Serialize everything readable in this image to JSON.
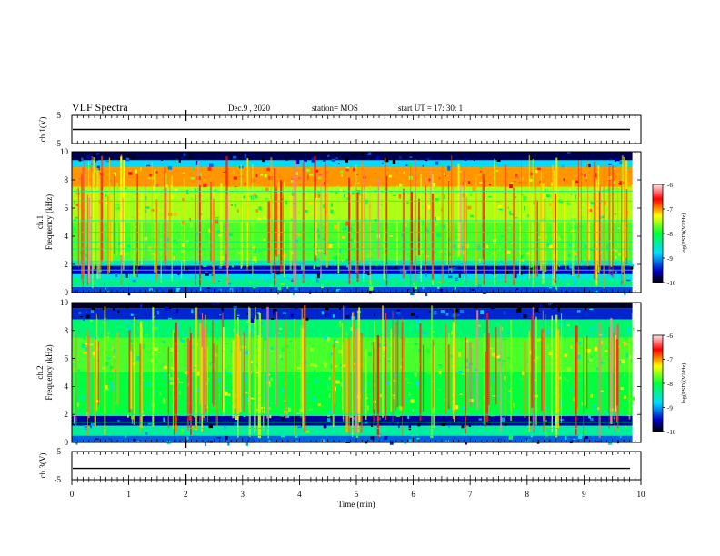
{
  "header": {
    "title": "VLF Spectra",
    "date": "Dec.9 , 2020",
    "station": "station= MOS",
    "start": "start UT = 17: 30: 1"
  },
  "colorbar": {
    "label": "log(PSD)(V²/Hz)",
    "ticks": [
      "-6",
      "-7",
      "-8",
      "-9",
      "-10"
    ],
    "stops": [
      "#ffffff",
      "#ff0000",
      "#ffff00",
      "#00ff00",
      "#00ffff",
      "#0000ff",
      "#000000"
    ]
  },
  "chart_data": [
    {
      "type": "line",
      "name": "ch1-waveform",
      "ylabel": "ch.1(V)",
      "ylim": [
        -5,
        5
      ],
      "yticks": [
        "5",
        "-5"
      ],
      "xlim": [
        0,
        10
      ],
      "series": [
        {
          "values_approx_constant": 0.0
        }
      ]
    },
    {
      "type": "heatmap",
      "name": "ch1-spectrogram",
      "ylabel": "ch.1\nFrequency (kHz)",
      "ylim": [
        0,
        10
      ],
      "yticks": [
        "0",
        "2",
        "4",
        "6",
        "8",
        "10"
      ],
      "xlim": [
        0,
        10
      ],
      "data_end_min": 9.85,
      "zlim": [
        -10,
        -6
      ],
      "zlabel": "log(PSD)(V²/Hz)",
      "bands": [
        {
          "from": 0,
          "to": 0.4,
          "level": 0.18
        },
        {
          "from": 0.4,
          "to": 0.9,
          "level": 0.42
        },
        {
          "from": 0.9,
          "to": 1.3,
          "level": 0.33
        },
        {
          "from": 1.3,
          "to": 1.9,
          "level": 0.12
        },
        {
          "from": 1.9,
          "to": 2.3,
          "level": 0.38
        },
        {
          "from": 2.3,
          "to": 5.0,
          "level": 0.55
        },
        {
          "from": 5.0,
          "to": 7.5,
          "level": 0.62
        },
        {
          "from": 7.5,
          "to": 8.9,
          "level": 0.75
        },
        {
          "from": 8.9,
          "to": 9.4,
          "level": 0.3
        },
        {
          "from": 9.4,
          "to": 10,
          "level": 0.05
        }
      ],
      "lines_khz": [
        0.5,
        0.95,
        1.6,
        1.95,
        2.2,
        3.1,
        3.6,
        4.3,
        5.1,
        6.5,
        7.2
      ]
    },
    {
      "type": "heatmap",
      "name": "ch2-spectrogram",
      "ylabel": "ch.2\nFrequency (kHz)",
      "ylim": [
        0,
        10
      ],
      "yticks": [
        "0",
        "2",
        "4",
        "6",
        "8",
        "10"
      ],
      "xlim": [
        0,
        10
      ],
      "data_end_min": 9.85,
      "zlim": [
        -10,
        -6
      ],
      "zlabel": "log(PSD)(V²/Hz)",
      "bands": [
        {
          "from": 0,
          "to": 0.5,
          "level": 0.2
        },
        {
          "from": 0.5,
          "to": 1.2,
          "level": 0.4
        },
        {
          "from": 1.2,
          "to": 1.9,
          "level": 0.1
        },
        {
          "from": 1.9,
          "to": 5.0,
          "level": 0.5
        },
        {
          "from": 5.0,
          "to": 7.5,
          "level": 0.55
        },
        {
          "from": 7.5,
          "to": 8.8,
          "level": 0.45
        },
        {
          "from": 8.8,
          "to": 9.6,
          "level": 0.15
        },
        {
          "from": 9.6,
          "to": 10,
          "level": 0.02
        }
      ],
      "lines_khz": [
        0.5,
        1.0,
        1.45,
        2.0
      ]
    },
    {
      "type": "line",
      "name": "ch3-waveform",
      "ylabel": "ch.3(V)",
      "ylim": [
        -5,
        5
      ],
      "yticks": [
        "5",
        "-5"
      ],
      "xlim": [
        0,
        10
      ],
      "xlabel": "Time (min)",
      "xticks": [
        "0",
        "1",
        "2",
        "3",
        "4",
        "5",
        "6",
        "7",
        "8",
        "9",
        "10"
      ],
      "series": [
        {
          "values_approx_constant": -1.0
        }
      ]
    }
  ]
}
